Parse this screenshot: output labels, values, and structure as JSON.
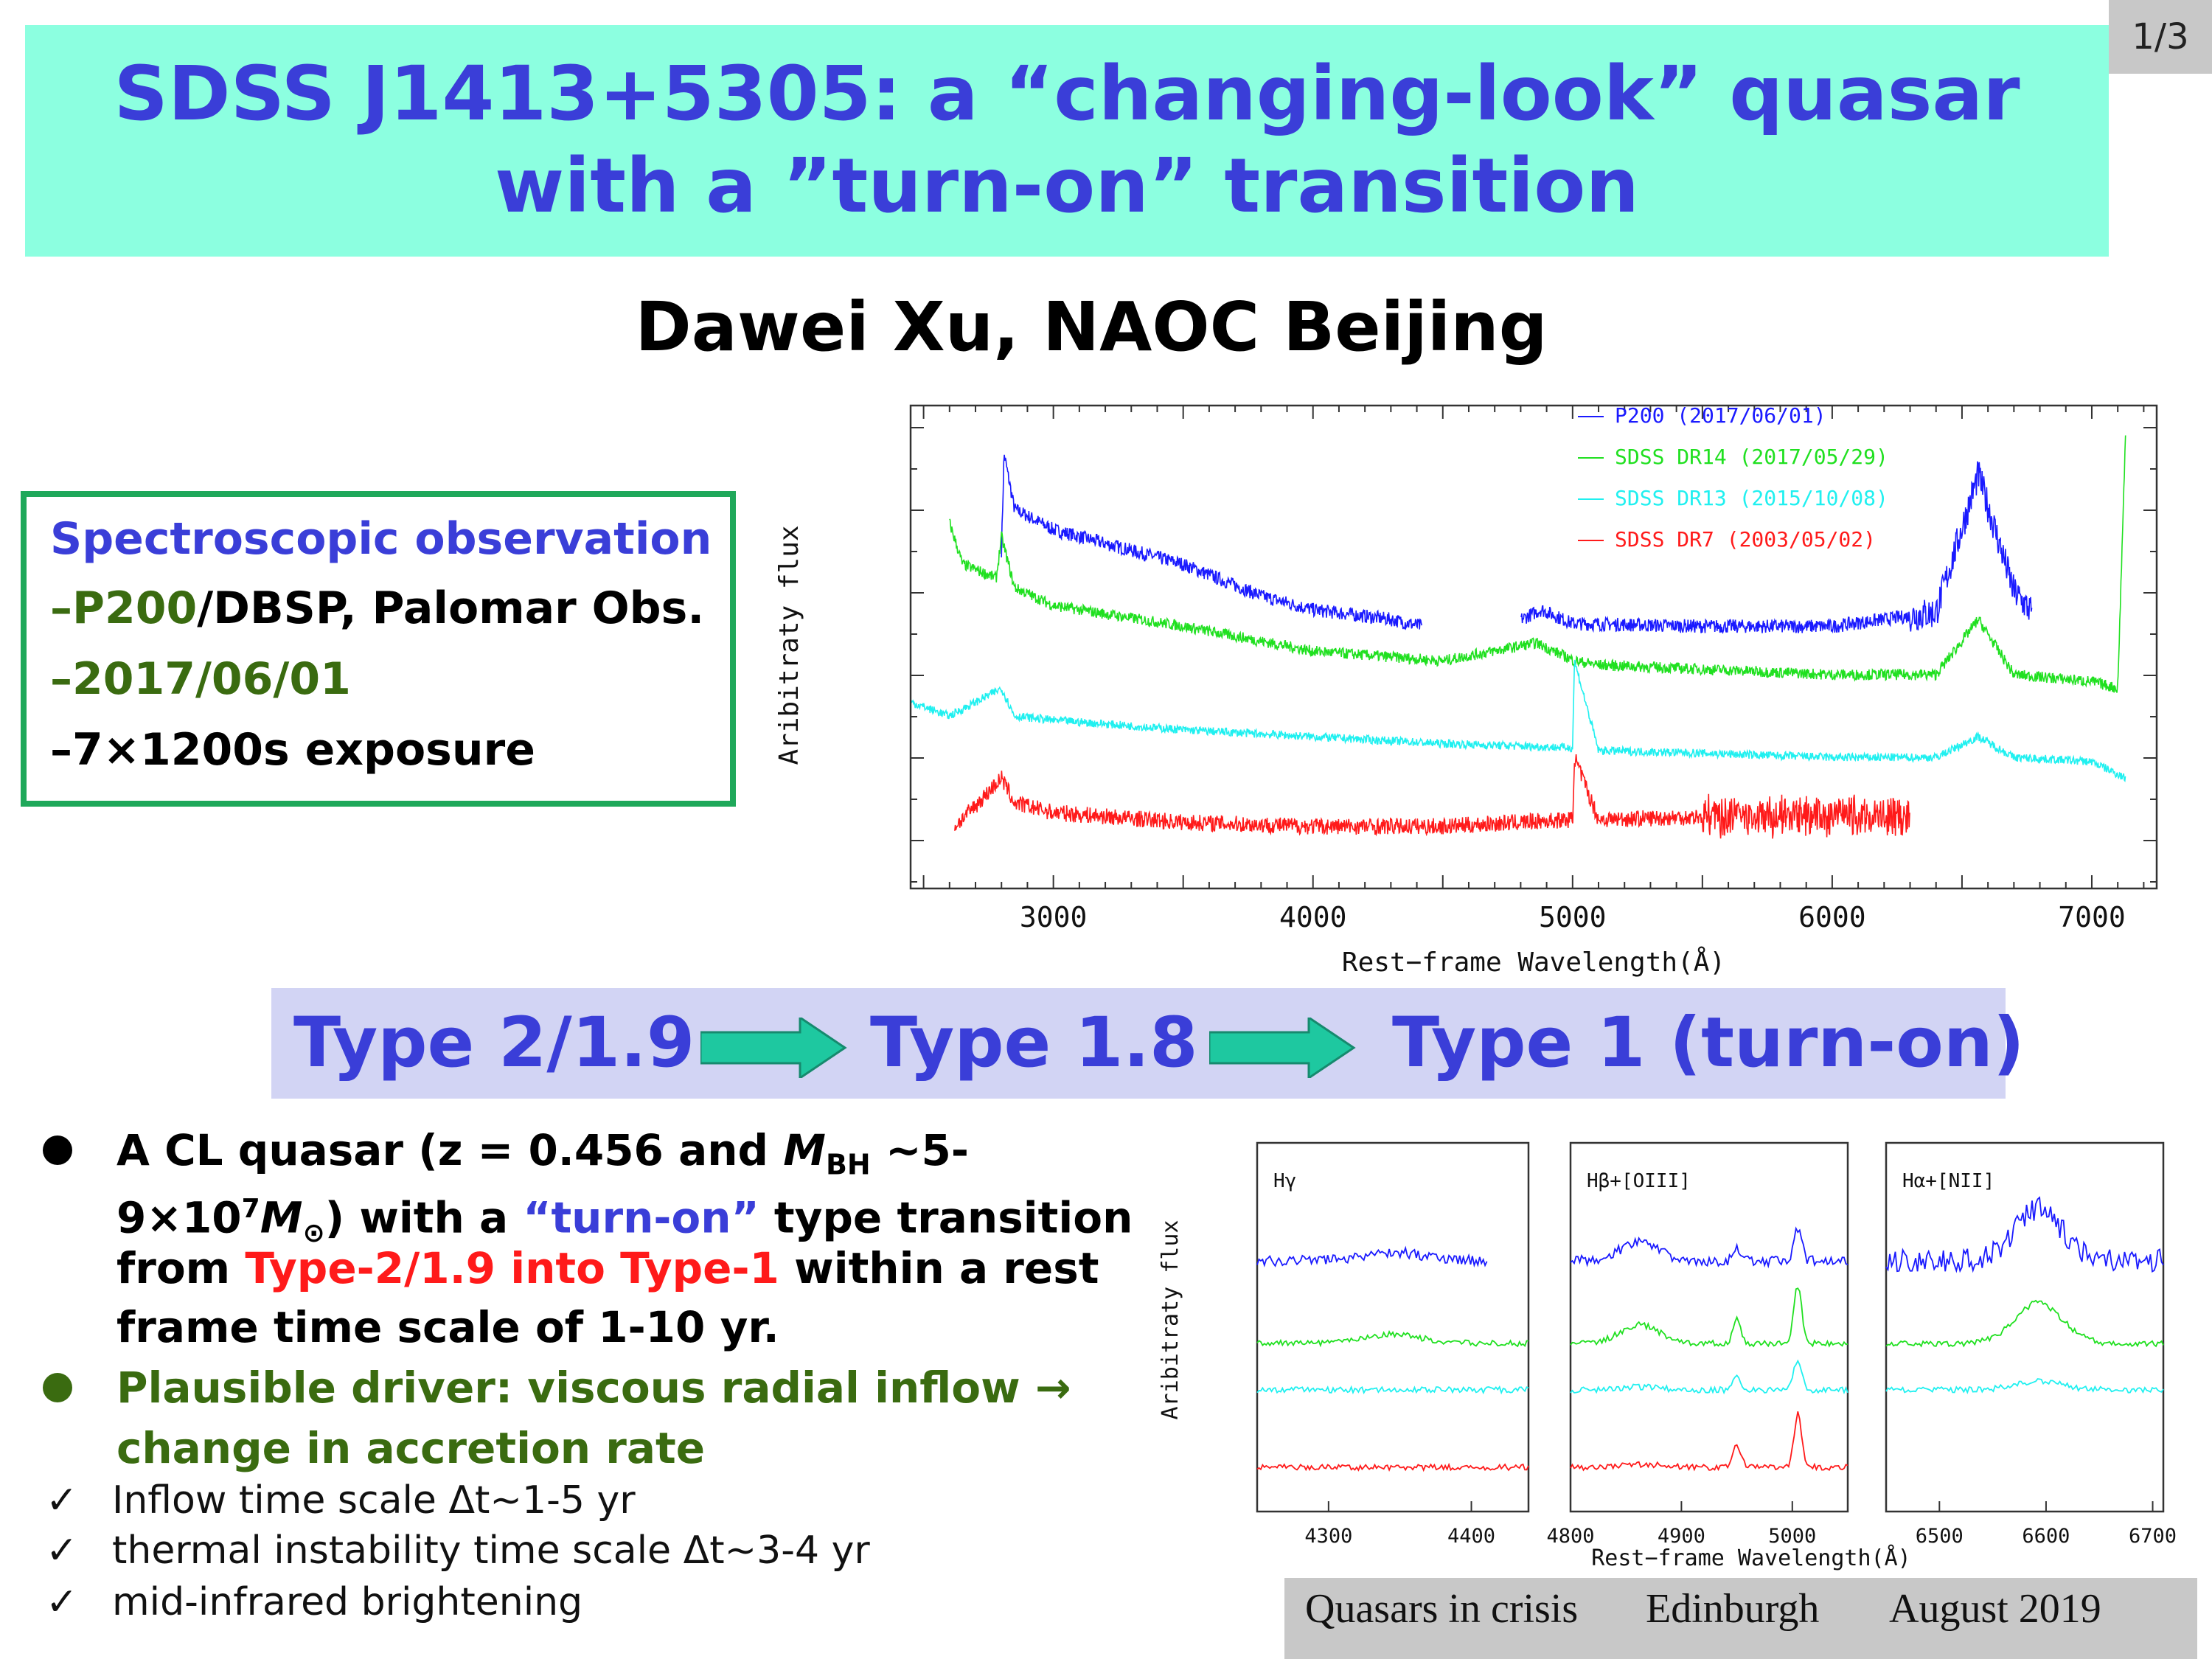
{
  "header": {
    "title_line1": "SDSS J1413+5305: a “changing-look” quasar",
    "title_line2": "with a ”turn-on” transition",
    "page": "1/3",
    "author": "Dawei Xu, NAOC Beijing"
  },
  "observation": {
    "heading": "Spectroscopic observation",
    "dash": "–",
    "inst_part1": "P200",
    "inst_part2": "/DBSP, Palomar Obs.",
    "date": "2017/06/01",
    "exposure": "7×1200s exposure"
  },
  "types": {
    "t1": "Type 2/1.9",
    "t2": "Type 1.8",
    "t3": "Type 1  (turn-on)"
  },
  "bullets": {
    "b1_l1": "A CL quasar (z = 0.456 and ",
    "b1_mbh": "M",
    "b1_mbh_sub": "BH",
    "b1_l1_end": " ~5-",
    "b1_l2_a": "9×10",
    "b1_l2_sup": "7",
    "b1_l2_m": "M",
    "b1_l2_sun": "⊙",
    "b1_l2_b": ") with a ",
    "b1_l2_turnon": "“turn-on”",
    "b1_l2_c": " type transition",
    "b1_l3_a": "from ",
    "b1_l3_red": "Type-2/1.9 into Type-1",
    "b1_l3_b": " within a rest",
    "b1_l4": "frame time scale of 1-10 yr.",
    "b2_l1": "Plausible driver: viscous radial inflow →",
    "b2_l2": "change in accretion rate",
    "checkmark": "✓",
    "c1": "Inflow time scale Δt~1-5 yr",
    "c2": "thermal instability time scale Δt~3-4 yr",
    "c3": "mid-infrared brightening"
  },
  "footer": {
    "f1": "Quasars in crisis",
    "f2": "Edinburgh",
    "f3": "August 2019"
  },
  "chart_data": [
    {
      "type": "line",
      "title": "",
      "xlabel": "Rest−frame Wavelength(Å)",
      "ylabel": "Aribitraty flux",
      "xlim": [
        2450,
        7250
      ],
      "xticks": [
        3000,
        4000,
        5000,
        6000,
        7000
      ],
      "legend_position": "top-right",
      "series": [
        {
          "name": "P200 (2017/06/01)",
          "color": "#1a1aff",
          "x": [
            2800,
            2810,
            2850,
            3000,
            3500,
            3800,
            4000,
            4300,
            4420,
            4800,
            4880,
            5000,
            5500,
            6000,
            6400,
            6563,
            6700,
            6770
          ],
          "y": [
            3.05,
            3.75,
            3.35,
            3.2,
            2.95,
            2.72,
            2.62,
            2.55,
            2.5,
            2.55,
            2.62,
            2.52,
            2.5,
            2.5,
            2.6,
            3.6,
            2.75,
            2.6
          ]
        },
        {
          "name": "SDSS DR14 (2017/05/29)",
          "color": "#20e020",
          "x": [
            2600,
            2650,
            2780,
            2800,
            2850,
            3000,
            3500,
            4000,
            4500,
            4860,
            5007,
            5100,
            6000,
            6400,
            6563,
            6700,
            7000,
            7100,
            7130
          ],
          "y": [
            3.25,
            2.95,
            2.85,
            3.15,
            2.78,
            2.65,
            2.5,
            2.32,
            2.25,
            2.38,
            2.25,
            2.22,
            2.15,
            2.15,
            2.55,
            2.15,
            2.1,
            2.05,
            3.9
          ]
        },
        {
          "name": "SDSS DR13 (2015/10/08)",
          "color": "#20f0f0",
          "x": [
            2450,
            2600,
            2800,
            2850,
            3000,
            3500,
            4000,
            4500,
            5000,
            5007,
            5100,
            5500,
            6000,
            6400,
            6563,
            6700,
            7000,
            7130
          ],
          "y": [
            1.95,
            1.85,
            2.05,
            1.85,
            1.82,
            1.75,
            1.7,
            1.65,
            1.62,
            2.25,
            1.6,
            1.58,
            1.55,
            1.55,
            1.7,
            1.55,
            1.52,
            1.4
          ]
        },
        {
          "name": "SDSS DR7 (2003/05/02)",
          "color": "#ff1a1a",
          "x": [
            2620,
            2700,
            2800,
            2850,
            3000,
            3500,
            4000,
            4500,
            5000,
            5007,
            5100,
            5500,
            6000,
            6300
          ],
          "y": [
            1.05,
            1.2,
            1.4,
            1.22,
            1.15,
            1.08,
            1.05,
            1.05,
            1.1,
            1.55,
            1.1,
            1.12,
            1.12,
            1.12
          ]
        }
      ]
    },
    {
      "type": "line",
      "title": "",
      "xlabel": "Rest−frame Wavelength(Å)",
      "ylabel": "Aribitraty flux",
      "panels": [
        {
          "label": "Hγ",
          "xlim": [
            4250,
            4440
          ],
          "xticks": [
            4300,
            4400
          ]
        },
        {
          "label": "Hβ+[OIII]",
          "xlim": [
            4800,
            5050
          ],
          "xticks": [
            4800,
            4900,
            5000
          ]
        },
        {
          "label": "Hα+[NII]",
          "xlim": [
            6450,
            6710
          ],
          "xticks": [
            6500,
            6600,
            6700
          ]
        }
      ]
    }
  ]
}
